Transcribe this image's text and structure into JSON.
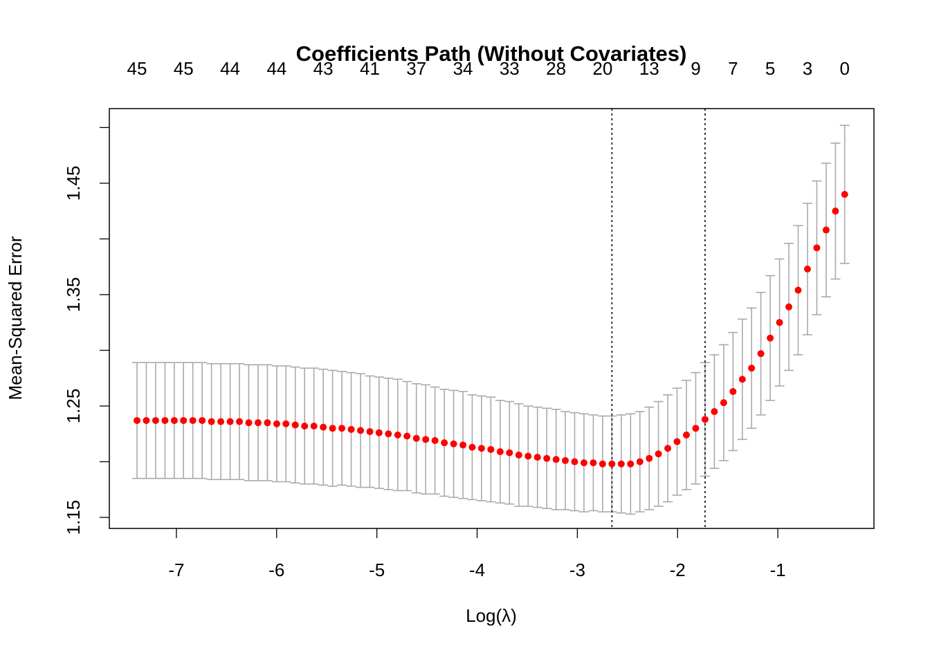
{
  "chart_data": {
    "type": "errorbar",
    "title": "Coefficients Path (Without Covariates)",
    "x_label": "Log(λ)",
    "y_label": "Mean-Squared Error",
    "x": [
      -7.393,
      -7.3,
      -7.207,
      -7.114,
      -7.021,
      -6.929,
      -6.836,
      -6.743,
      -6.65,
      -6.557,
      -6.464,
      -6.371,
      -6.278,
      -6.185,
      -6.092,
      -5.999,
      -5.907,
      -5.814,
      -5.721,
      -5.628,
      -5.535,
      -5.442,
      -5.349,
      -5.256,
      -5.163,
      -5.07,
      -4.978,
      -4.885,
      -4.792,
      -4.699,
      -4.606,
      -4.513,
      -4.42,
      -4.327,
      -4.234,
      -4.141,
      -4.049,
      -3.956,
      -3.863,
      -3.77,
      -3.677,
      -3.584,
      -3.491,
      -3.398,
      -3.305,
      -3.212,
      -3.12,
      -3.027,
      -2.934,
      -2.841,
      -2.748,
      -2.655,
      -2.562,
      -2.469,
      -2.376,
      -2.283,
      -2.191,
      -2.098,
      -2.005,
      -1.912,
      -1.819,
      -1.726,
      -1.633,
      -1.54,
      -1.447,
      -1.354,
      -1.262,
      -1.169,
      -1.076,
      -0.983,
      -0.89,
      -0.797,
      -0.704,
      -0.611,
      -0.518,
      -0.425,
      -0.333
    ],
    "values": [
      1.237,
      1.237,
      1.237,
      1.237,
      1.237,
      1.237,
      1.237,
      1.237,
      1.236,
      1.236,
      1.236,
      1.236,
      1.235,
      1.235,
      1.235,
      1.234,
      1.234,
      1.233,
      1.232,
      1.232,
      1.231,
      1.23,
      1.23,
      1.229,
      1.228,
      1.227,
      1.226,
      1.225,
      1.224,
      1.223,
      1.221,
      1.22,
      1.219,
      1.217,
      1.216,
      1.215,
      1.213,
      1.212,
      1.211,
      1.209,
      1.208,
      1.206,
      1.205,
      1.204,
      1.203,
      1.202,
      1.201,
      1.2,
      1.199,
      1.199,
      1.198,
      1.198,
      1.198,
      1.198,
      1.2,
      1.203,
      1.207,
      1.212,
      1.218,
      1.224,
      1.23,
      1.238,
      1.245,
      1.253,
      1.263,
      1.274,
      1.284,
      1.297,
      1.311,
      1.325,
      1.339,
      1.354,
      1.373,
      1.392,
      1.408,
      1.425,
      1.44
    ],
    "errors": [
      0.052,
      0.052,
      0.052,
      0.052,
      0.052,
      0.052,
      0.052,
      0.052,
      0.052,
      0.052,
      0.052,
      0.052,
      0.052,
      0.052,
      0.052,
      0.052,
      0.052,
      0.052,
      0.052,
      0.052,
      0.052,
      0.052,
      0.051,
      0.051,
      0.051,
      0.05,
      0.05,
      0.05,
      0.05,
      0.049,
      0.049,
      0.049,
      0.048,
      0.048,
      0.048,
      0.048,
      0.047,
      0.047,
      0.047,
      0.046,
      0.046,
      0.046,
      0.045,
      0.045,
      0.045,
      0.045,
      0.044,
      0.044,
      0.044,
      0.043,
      0.043,
      0.043,
      0.044,
      0.045,
      0.045,
      0.046,
      0.047,
      0.048,
      0.048,
      0.049,
      0.05,
      0.051,
      0.051,
      0.052,
      0.053,
      0.054,
      0.054,
      0.055,
      0.056,
      0.057,
      0.057,
      0.058,
      0.059,
      0.06,
      0.06,
      0.061,
      0.062
    ],
    "color": "#ff0000",
    "error_color": "#a9a9a9",
    "vlines": [
      -2.655,
      -1.726
    ],
    "xlim": [
      -7.669,
      -0.041
    ],
    "ylim": [
      1.1401,
      1.517
    ],
    "xticks": [
      -7,
      -6,
      -5,
      -4,
      -3,
      -2,
      -1
    ],
    "yticks": [
      1.15,
      {
        "value": 1.2,
        "label": null
      },
      1.25,
      {
        "value": 1.3,
        "label": null
      },
      1.35,
      {
        "value": 1.4,
        "label": null
      },
      1.45,
      {
        "value": 1.5,
        "label": null
      }
    ],
    "top_ticks": [
      {
        "value": -7.393,
        "label": "45"
      },
      {
        "value": -6.929,
        "label": "45"
      },
      {
        "value": -6.464,
        "label": "44"
      },
      {
        "value": -5.999,
        "label": "44"
      },
      {
        "value": -5.535,
        "label": "43"
      },
      {
        "value": -5.07,
        "label": "41"
      },
      {
        "value": -4.606,
        "label": "37"
      },
      {
        "value": -4.141,
        "label": "34"
      },
      {
        "value": -3.677,
        "label": "33"
      },
      {
        "value": -3.212,
        "label": "28"
      },
      {
        "value": -2.748,
        "label": "20"
      },
      {
        "value": -2.283,
        "label": "13"
      },
      {
        "value": -1.819,
        "label": "9"
      },
      {
        "value": -1.447,
        "label": "7"
      },
      {
        "value": -1.076,
        "label": "5"
      },
      {
        "value": -0.704,
        "label": "3"
      },
      {
        "value": -0.333,
        "label": "0"
      }
    ]
  }
}
